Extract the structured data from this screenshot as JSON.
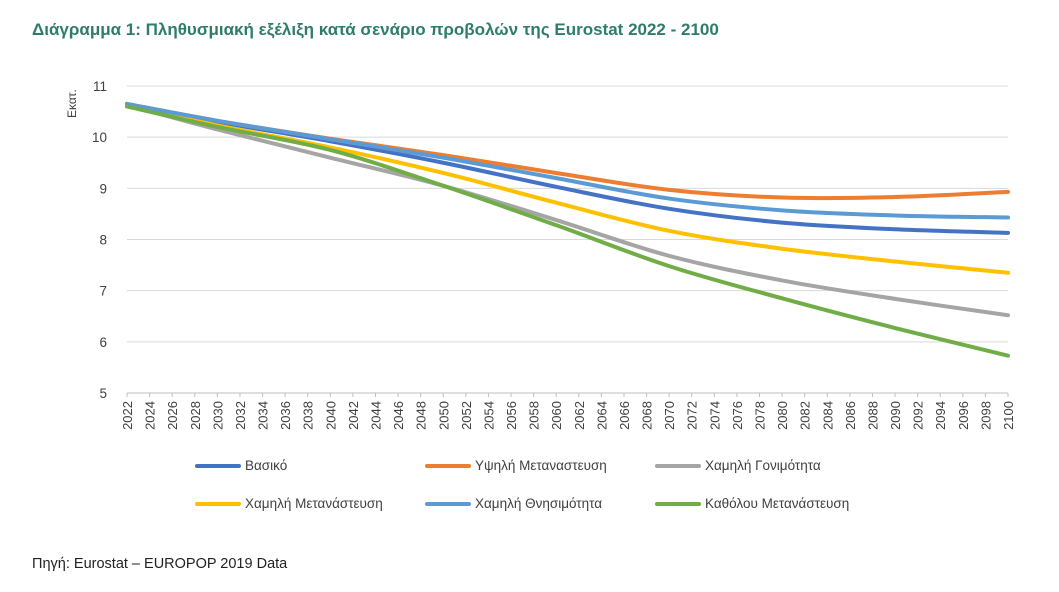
{
  "title": "Διάγραμμα 1: Πληθυσμιακή εξέλιξη κατά σενάριο προβολών της Eurostat 2022 - 2100",
  "source": "Πηγή: Eurostat – EUROPOP 2019 Data",
  "chart_data": {
    "type": "line",
    "title": "",
    "ylabel": "Εκατ.",
    "xlabel": "",
    "ylim": [
      5,
      11
    ],
    "yticks": [
      5,
      6,
      7,
      8,
      9,
      10,
      11
    ],
    "grid": true,
    "legend_position": "bottom",
    "x": [
      2022,
      2030,
      2040,
      2050,
      2060,
      2070,
      2080,
      2090,
      2100
    ],
    "x_ticks": [
      "2022",
      "2024",
      "2026",
      "2028",
      "2030",
      "2032",
      "2034",
      "2036",
      "2038",
      "2040",
      "2042",
      "2044",
      "2046",
      "2048",
      "2050",
      "2052",
      "2054",
      "2056",
      "2058",
      "2060",
      "2062",
      "2064",
      "2066",
      "2068",
      "2070",
      "2072",
      "2074",
      "2076",
      "2078",
      "2080",
      "2082",
      "2084",
      "2086",
      "2088",
      "2090",
      "2092",
      "2094",
      "2096",
      "2098",
      "2100"
    ],
    "series": [
      {
        "name": "Βασικό",
        "color": "#4472C4",
        "values": [
          10.65,
          10.3,
          9.92,
          9.5,
          9.03,
          8.6,
          8.33,
          8.2,
          8.13
        ]
      },
      {
        "name": "Υψηλή Μεταναστευση",
        "color": "#ED7D31",
        "values": [
          10.65,
          10.32,
          9.97,
          9.65,
          9.3,
          8.97,
          8.82,
          8.83,
          8.93
        ]
      },
      {
        "name": "Χαμηλή Γονιμότητα",
        "color": "#A5A5A5",
        "values": [
          10.63,
          10.15,
          9.6,
          9.05,
          8.38,
          7.68,
          7.2,
          6.84,
          6.52
        ]
      },
      {
        "name": "Χαμηλή Μετανάστευση",
        "color": "#FFC000",
        "values": [
          10.63,
          10.23,
          9.8,
          9.3,
          8.72,
          8.17,
          7.82,
          7.57,
          7.35
        ]
      },
      {
        "name": "Χαμηλή Θνησιμότητα",
        "color": "#5B9BD5",
        "values": [
          10.65,
          10.32,
          9.96,
          9.6,
          9.2,
          8.8,
          8.57,
          8.47,
          8.43
        ]
      },
      {
        "name": "Καθόλου Μετανάστευση",
        "color": "#70AD47",
        "values": [
          10.6,
          10.2,
          9.75,
          9.05,
          8.28,
          7.48,
          6.85,
          6.27,
          5.73
        ]
      }
    ]
  }
}
